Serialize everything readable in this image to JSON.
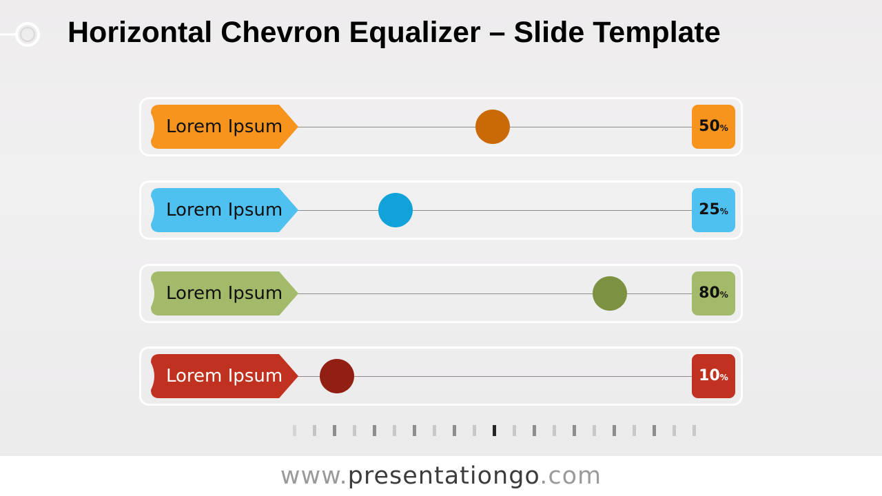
{
  "slide": {
    "title": "Horizontal Chevron Equalizer – Slide Template"
  },
  "rows": [
    {
      "label": "Lorem Ipsum",
      "value": 50,
      "value_text": "50",
      "unit": "%",
      "color": "#F7941D",
      "knob_color": "#C96A07",
      "label_text_color": "#111111"
    },
    {
      "label": "Lorem Ipsum",
      "value": 25,
      "value_text": "25",
      "unit": "%",
      "color": "#4FC1F0",
      "knob_color": "#11A2DA",
      "label_text_color": "#111111"
    },
    {
      "label": "Lorem Ipsum",
      "value": 80,
      "value_text": "80",
      "unit": "%",
      "color": "#A2BA6A",
      "knob_color": "#7C9242",
      "label_text_color": "#111111"
    },
    {
      "label": "Lorem Ipsum",
      "value": 10,
      "value_text": "10",
      "unit": "%",
      "color": "#C0321F",
      "knob_color": "#921F14",
      "label_text_color": "#ffffff"
    }
  ],
  "footer": {
    "prefix": "www.",
    "brand": "presentationgo",
    "suffix": ".com"
  }
}
